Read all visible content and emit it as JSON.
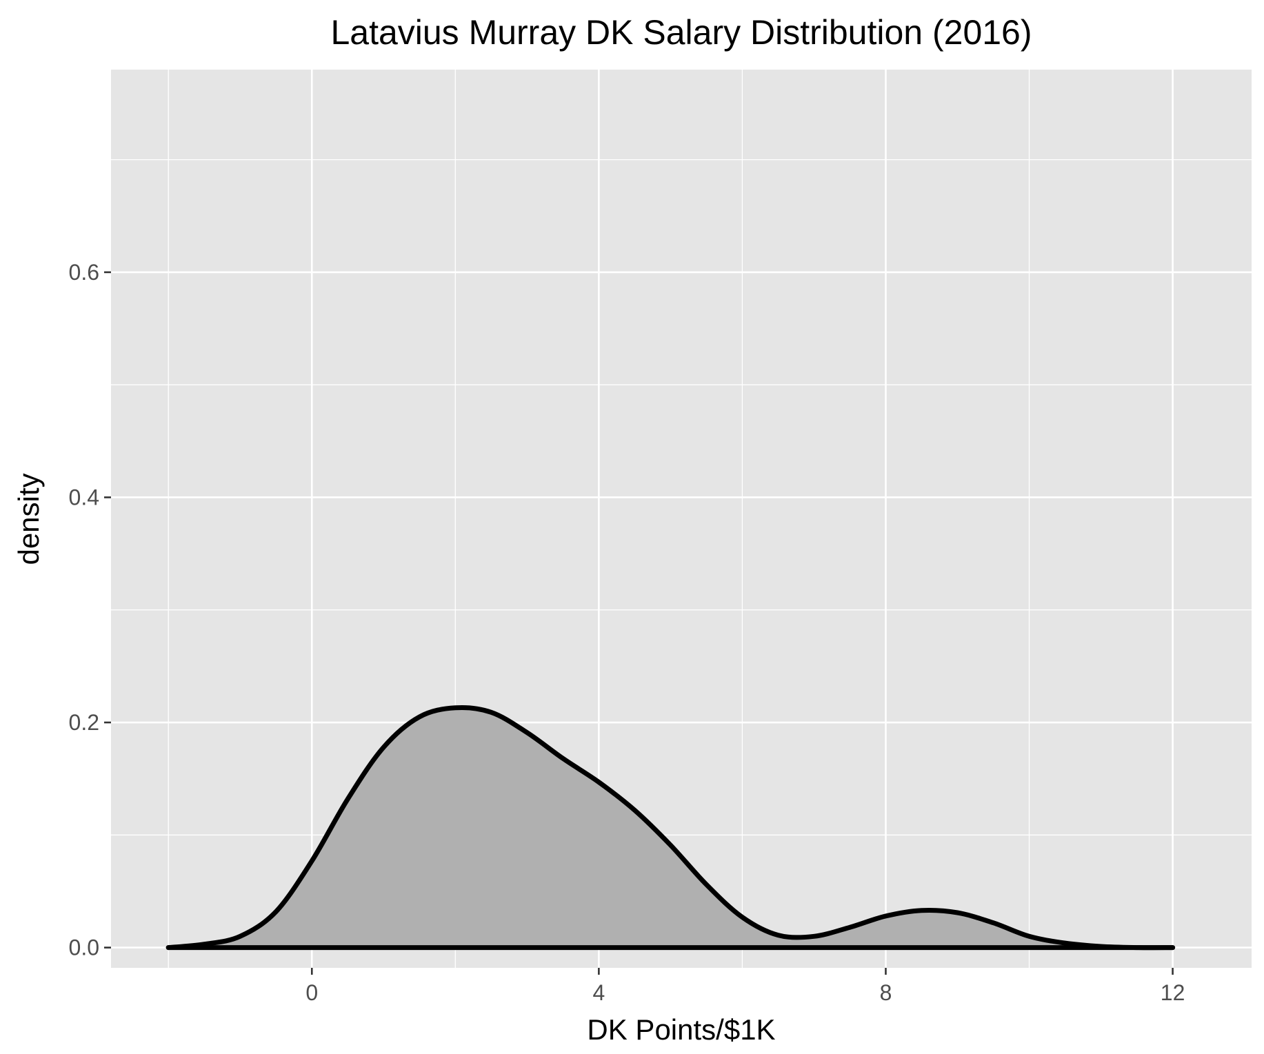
{
  "chart_data": {
    "type": "area",
    "title": "Latavius Murray DK Salary Distribution (2016)",
    "xlabel": "DK Points/$1K",
    "ylabel": "density",
    "xlim": [
      -2.8,
      13.1
    ],
    "ylim": [
      -0.018,
      0.78
    ],
    "x_ticks": [
      0,
      4,
      8,
      12
    ],
    "x_tick_labels": [
      "0",
      "4",
      "8",
      "12"
    ],
    "y_ticks": [
      0.0,
      0.2,
      0.4,
      0.6
    ],
    "y_tick_labels": [
      "0.0",
      "0.2",
      "0.4",
      "0.6"
    ],
    "x_minor": [
      -2,
      2,
      6,
      10
    ],
    "y_minor": [
      0.1,
      0.3,
      0.5,
      0.7
    ],
    "grid": true,
    "legend": "none",
    "series": [
      {
        "x": [
          -2.0,
          -1.5,
          -1.0,
          -0.5,
          0.0,
          0.5,
          1.0,
          1.5,
          2.0,
          2.5,
          3.0,
          3.5,
          4.0,
          4.5,
          5.0,
          5.5,
          6.0,
          6.5,
          7.0,
          7.5,
          8.0,
          8.5,
          9.0,
          9.5,
          10.0,
          10.5,
          11.0,
          11.5,
          12.0
        ],
        "y": [
          0.0,
          0.003,
          0.01,
          0.032,
          0.077,
          0.132,
          0.178,
          0.205,
          0.213,
          0.209,
          0.191,
          0.168,
          0.147,
          0.122,
          0.091,
          0.056,
          0.027,
          0.011,
          0.01,
          0.018,
          0.028,
          0.033,
          0.031,
          0.022,
          0.01,
          0.004,
          0.001,
          0.0,
          0.0
        ]
      }
    ],
    "colors": {
      "panel": "#e5e5e5",
      "grid": "#ffffff",
      "fill": "#b0b0b0",
      "line": "#000000",
      "tick_text": "#4d4d4d"
    }
  }
}
